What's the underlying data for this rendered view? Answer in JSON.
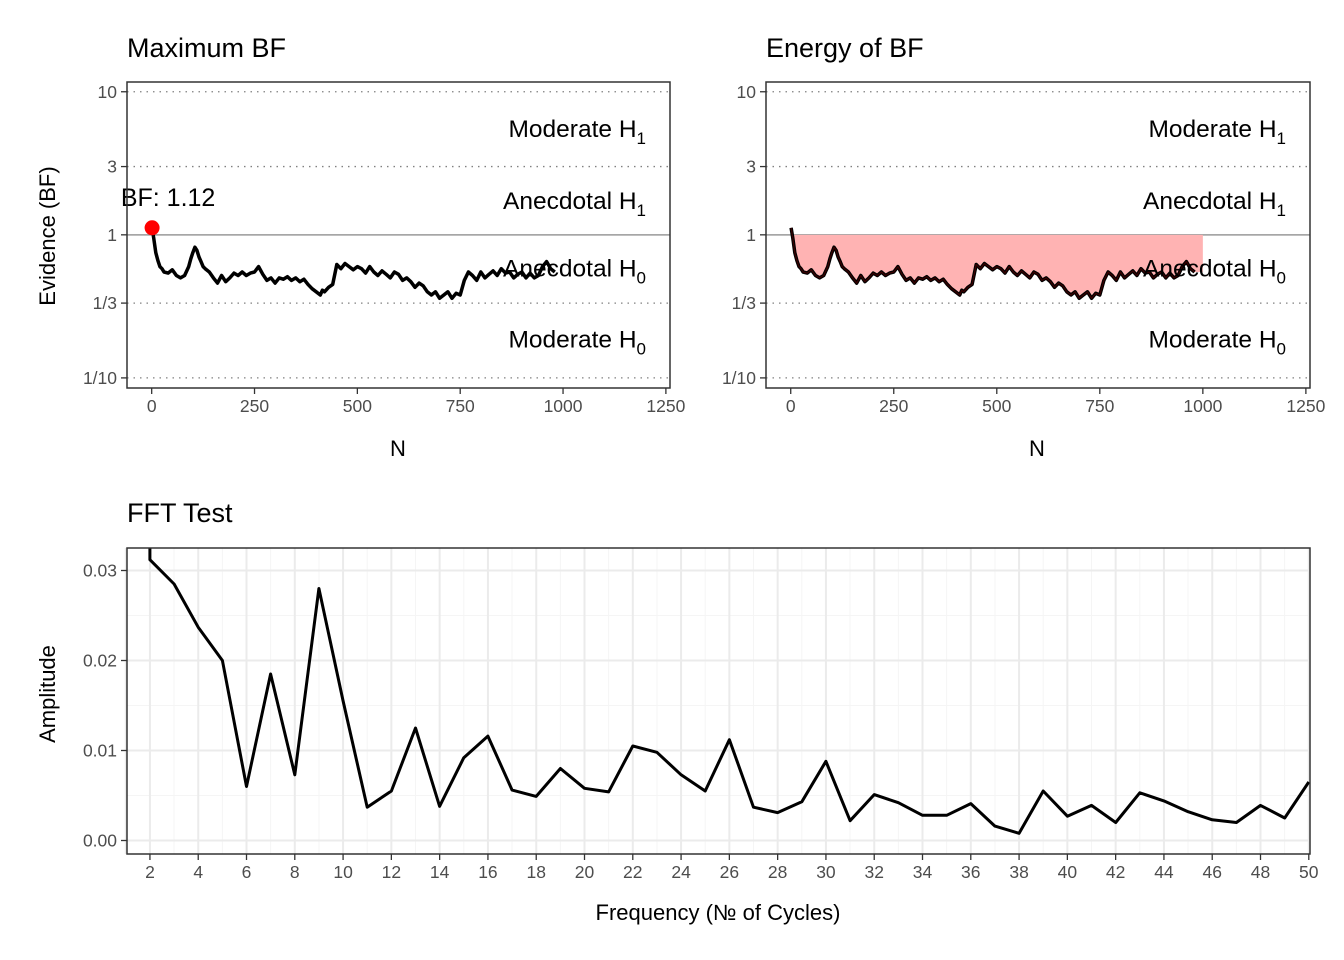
{
  "colors": {
    "line": "#000000",
    "point": "#ff0000",
    "fill": "#ffb3b3",
    "panel_border": "#333333",
    "reference_line": "#999999",
    "grid_major": "#ebebeb",
    "grid_minor": "#f5f5f5"
  },
  "chart_data": [
    {
      "type": "line",
      "title": "Maximum BF",
      "xlabel": "N",
      "ylabel": "Evidence (BF)",
      "y_scale": "log",
      "xlim": [
        -60,
        1260
      ],
      "ylim": [
        0.085,
        11.7
      ],
      "x_ticks": [
        0,
        250,
        500,
        750,
        1000,
        1250
      ],
      "x_tick_labels": [
        "0",
        "250",
        "500",
        "750",
        "1000",
        "1250"
      ],
      "y_ticks": [
        10,
        3,
        1,
        0.3333,
        0.1
      ],
      "y_tick_labels": [
        "10",
        "3",
        "1",
        "1/3",
        "1/10"
      ],
      "zone_labels": [
        {
          "main": "Moderate H",
          "sub": "1",
          "y": 5.5
        },
        {
          "main": "Anecdotal H",
          "sub": "1",
          "y": 1.73
        },
        {
          "main": "Anecdotal H",
          "sub": "0",
          "y": 0.58
        },
        {
          "main": "Moderate H",
          "sub": "0",
          "y": 0.185
        }
      ],
      "annotation": {
        "text": "BF: 1.12",
        "x": 1,
        "y": 1.12
      },
      "series": [
        {
          "x": [
            1,
            5,
            10,
            15,
            20,
            25,
            30,
            40,
            50,
            60,
            70,
            80,
            90,
            95,
            100,
            105,
            110,
            115,
            120,
            125,
            130,
            140,
            150,
            160,
            170,
            180,
            190,
            200,
            210,
            220,
            230,
            240,
            250,
            260,
            270,
            280,
            290,
            300,
            310,
            320,
            330,
            340,
            350,
            360,
            370,
            380,
            390,
            400,
            410,
            415,
            420,
            430,
            440,
            450,
            460,
            470,
            480,
            490,
            500,
            510,
            520,
            530,
            540,
            550,
            560,
            570,
            580,
            590,
            600,
            610,
            620,
            630,
            640,
            650,
            660,
            670,
            680,
            690,
            700,
            710,
            720,
            730,
            740,
            750,
            760,
            770,
            780,
            790,
            800,
            810,
            820,
            830,
            840,
            850,
            860,
            870,
            880,
            890,
            900,
            910,
            920,
            930,
            940,
            950,
            960,
            970,
            980
          ],
          "y": [
            1.12,
            0.95,
            0.75,
            0.66,
            0.6,
            0.58,
            0.55,
            0.54,
            0.57,
            0.52,
            0.5,
            0.52,
            0.6,
            0.68,
            0.75,
            0.82,
            0.78,
            0.7,
            0.65,
            0.6,
            0.58,
            0.55,
            0.5,
            0.46,
            0.52,
            0.47,
            0.5,
            0.54,
            0.52,
            0.55,
            0.52,
            0.54,
            0.55,
            0.6,
            0.53,
            0.48,
            0.5,
            0.46,
            0.5,
            0.49,
            0.51,
            0.48,
            0.5,
            0.47,
            0.49,
            0.45,
            0.42,
            0.4,
            0.38,
            0.41,
            0.4,
            0.43,
            0.45,
            0.62,
            0.58,
            0.63,
            0.6,
            0.57,
            0.6,
            0.58,
            0.54,
            0.6,
            0.55,
            0.52,
            0.56,
            0.53,
            0.5,
            0.55,
            0.53,
            0.48,
            0.5,
            0.47,
            0.43,
            0.46,
            0.44,
            0.4,
            0.38,
            0.4,
            0.36,
            0.38,
            0.4,
            0.36,
            0.39,
            0.38,
            0.48,
            0.55,
            0.52,
            0.48,
            0.55,
            0.5,
            0.53,
            0.56,
            0.52,
            0.58,
            0.54,
            0.55,
            0.5,
            0.53,
            0.55,
            0.5,
            0.54,
            0.5,
            0.52,
            0.6,
            0.65,
            0.58,
            0.55
          ]
        }
      ]
    },
    {
      "type": "area",
      "title": "Energy of BF",
      "xlabel": "N",
      "ylabel": "",
      "y_scale": "log",
      "xlim": [
        -60,
        1260
      ],
      "ylim": [
        0.085,
        11.7
      ],
      "x_ticks": [
        0,
        250,
        500,
        750,
        1000,
        1250
      ],
      "x_tick_labels": [
        "0",
        "250",
        "500",
        "750",
        "1000",
        "1250"
      ],
      "y_ticks": [
        10,
        3,
        1,
        0.3333,
        0.1
      ],
      "y_tick_labels": [
        "10",
        "3",
        "1",
        "1/3",
        "1/10"
      ],
      "zone_labels": [
        {
          "main": "Moderate H",
          "sub": "1",
          "y": 5.5
        },
        {
          "main": "Anecdotal H",
          "sub": "1",
          "y": 1.73
        },
        {
          "main": "Anecdotal H",
          "sub": "0",
          "y": 0.58
        },
        {
          "main": "Moderate H",
          "sub": "0",
          "y": 0.185
        }
      ],
      "fill_between": {
        "reference_y": 1,
        "x_range": [
          0,
          1000
        ]
      },
      "series": [
        {
          "x": [
            1,
            5,
            10,
            15,
            20,
            25,
            30,
            40,
            50,
            60,
            70,
            80,
            90,
            95,
            100,
            105,
            110,
            115,
            120,
            125,
            130,
            140,
            150,
            160,
            170,
            180,
            190,
            200,
            210,
            220,
            230,
            240,
            250,
            260,
            270,
            280,
            290,
            300,
            310,
            320,
            330,
            340,
            350,
            360,
            370,
            380,
            390,
            400,
            410,
            415,
            420,
            430,
            440,
            450,
            460,
            470,
            480,
            490,
            500,
            510,
            520,
            530,
            540,
            550,
            560,
            570,
            580,
            590,
            600,
            610,
            620,
            630,
            640,
            650,
            660,
            670,
            680,
            690,
            700,
            710,
            720,
            730,
            740,
            750,
            760,
            770,
            780,
            790,
            800,
            810,
            820,
            830,
            840,
            850,
            860,
            870,
            880,
            890,
            900,
            910,
            920,
            930,
            940,
            950,
            960,
            970,
            980
          ],
          "y": [
            1.12,
            0.95,
            0.75,
            0.66,
            0.6,
            0.58,
            0.55,
            0.54,
            0.57,
            0.52,
            0.5,
            0.52,
            0.6,
            0.68,
            0.75,
            0.82,
            0.78,
            0.7,
            0.65,
            0.6,
            0.58,
            0.55,
            0.5,
            0.46,
            0.52,
            0.47,
            0.5,
            0.54,
            0.52,
            0.55,
            0.52,
            0.54,
            0.55,
            0.6,
            0.53,
            0.48,
            0.5,
            0.46,
            0.5,
            0.49,
            0.51,
            0.48,
            0.5,
            0.47,
            0.49,
            0.45,
            0.42,
            0.4,
            0.38,
            0.41,
            0.4,
            0.43,
            0.45,
            0.62,
            0.58,
            0.63,
            0.6,
            0.57,
            0.6,
            0.58,
            0.54,
            0.6,
            0.55,
            0.52,
            0.56,
            0.53,
            0.5,
            0.55,
            0.53,
            0.48,
            0.5,
            0.47,
            0.43,
            0.46,
            0.44,
            0.4,
            0.38,
            0.4,
            0.36,
            0.38,
            0.4,
            0.36,
            0.39,
            0.38,
            0.48,
            0.55,
            0.52,
            0.48,
            0.55,
            0.5,
            0.53,
            0.56,
            0.52,
            0.58,
            0.54,
            0.55,
            0.5,
            0.53,
            0.55,
            0.5,
            0.54,
            0.5,
            0.52,
            0.6,
            0.65,
            0.58,
            0.55
          ]
        }
      ]
    },
    {
      "type": "line",
      "title": "FFT Test",
      "xlabel": "Frequency (№ of Cycles)",
      "ylabel": "Amplitude",
      "xlim": [
        1.05,
        50.05
      ],
      "ylim": [
        -0.0015,
        0.0325
      ],
      "x_ticks": [
        2,
        4,
        6,
        8,
        10,
        12,
        14,
        16,
        18,
        20,
        22,
        24,
        26,
        28,
        30,
        32,
        34,
        36,
        38,
        40,
        42,
        44,
        46,
        48,
        50
      ],
      "x_tick_labels": [
        "2",
        "4",
        "6",
        "8",
        "10",
        "12",
        "14",
        "16",
        "18",
        "20",
        "22",
        "24",
        "26",
        "28",
        "30",
        "32",
        "34",
        "36",
        "38",
        "40",
        "42",
        "44",
        "46",
        "48",
        "50"
      ],
      "y_ticks": [
        0,
        0.01,
        0.02,
        0.03
      ],
      "y_tick_labels": [
        "0.00",
        "0.01",
        "0.02",
        "0.03"
      ],
      "grid": true,
      "series": [
        {
          "x": [
            2,
            2,
            3,
            4,
            5,
            6,
            7,
            8,
            9,
            10,
            11,
            12,
            13,
            14,
            15,
            16,
            17,
            18,
            19,
            20,
            21,
            22,
            23,
            24,
            25,
            26,
            27,
            28,
            29,
            30,
            31,
            32,
            33,
            34,
            35,
            36,
            37,
            38,
            39,
            40,
            41,
            42,
            43,
            44,
            45,
            46,
            47,
            48,
            49,
            50
          ],
          "y": [
            0.0325,
            0.0312,
            0.0285,
            0.0237,
            0.02,
            0.006,
            0.0185,
            0.0073,
            0.028,
            0.0155,
            0.0037,
            0.0055,
            0.0125,
            0.0038,
            0.0092,
            0.0116,
            0.0056,
            0.0049,
            0.008,
            0.0058,
            0.0054,
            0.0105,
            0.0098,
            0.0073,
            0.0055,
            0.0112,
            0.0037,
            0.0031,
            0.0043,
            0.0088,
            0.0022,
            0.0051,
            0.0042,
            0.0028,
            0.0028,
            0.0041,
            0.0016,
            0.0008,
            0.0055,
            0.0027,
            0.0039,
            0.002,
            0.0053,
            0.0044,
            0.0032,
            0.0023,
            0.002,
            0.0039,
            0.0025,
            0.0065
          ]
        }
      ]
    }
  ]
}
